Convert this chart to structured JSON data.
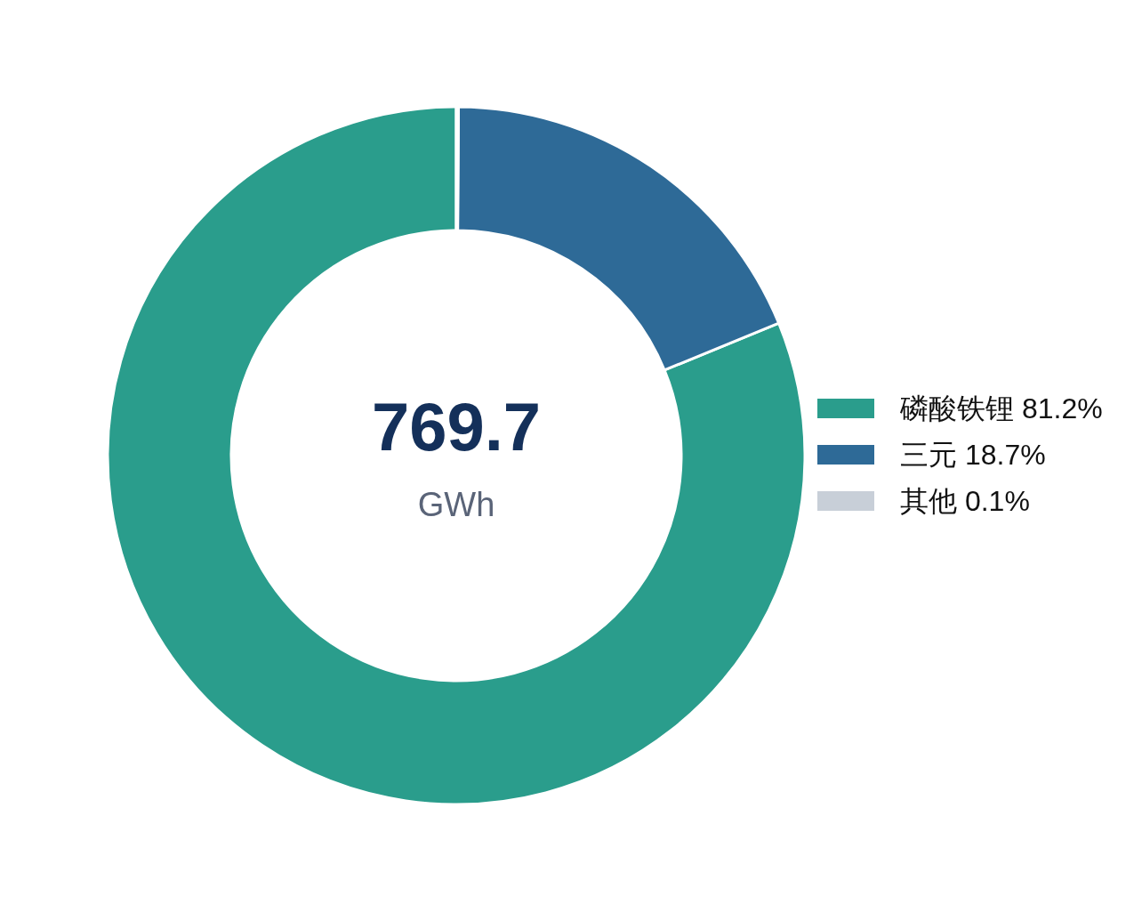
{
  "chart_data": {
    "type": "donut",
    "categories": [
      "磷酸铁锂",
      "三元",
      "其他"
    ],
    "values": [
      81.2,
      18.7,
      0.1
    ],
    "colors": [
      "#2a9d8c",
      "#2e6a97",
      "#c8cfd8"
    ],
    "value_labels": [
      "81.2%",
      "18.7%",
      "0.1%"
    ],
    "legend": "right",
    "annotations": [
      "769.7",
      "GWh"
    ]
  }
}
